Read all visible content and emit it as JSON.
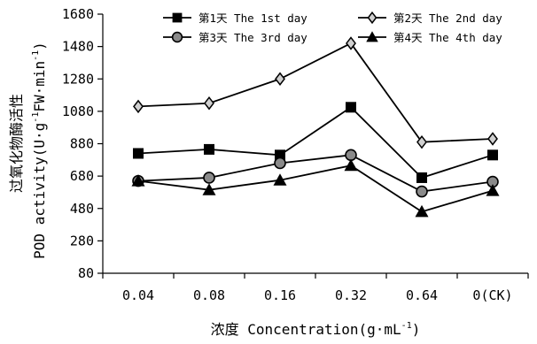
{
  "chart_data": {
    "type": "line",
    "categories": [
      "0.04",
      "0.08",
      "0.16",
      "0.32",
      "0.64",
      "0(CK)"
    ],
    "ylabel_cn": "过氧化物酶活性",
    "ylabel_en": "POD activity(U·g",
    "ylabel_en_sup": "-1",
    "ylabel_en_tail": "FW·min",
    "ylabel_en_sup2": "-1",
    "ylabel_en_end": ")",
    "xlabel": "浓度 Concentration(g·mL",
    "xlabel_sup": "-1",
    "xlabel_end": ")",
    "ylim": [
      80,
      1680
    ],
    "yticks": [
      "80",
      "280",
      "480",
      "680",
      "880",
      "1080",
      "1280",
      "1480",
      "1680"
    ],
    "grid": false,
    "legend_position": "top",
    "series": [
      {
        "name": "第1天 The 1st day",
        "marker": "square",
        "color": "#000000",
        "values": [
          820,
          845,
          810,
          1105,
          670,
          810
        ]
      },
      {
        "name": "第2天 The 2nd day",
        "marker": "diamond",
        "color": "#000000",
        "values": [
          1110,
          1130,
          1280,
          1500,
          890,
          910
        ]
      },
      {
        "name": "第3天 The 3rd day",
        "marker": "circle",
        "color": "#000000",
        "values": [
          650,
          670,
          760,
          810,
          585,
          645
        ]
      },
      {
        "name": "第4天 The 4th day",
        "marker": "triangle",
        "color": "#000000",
        "values": [
          650,
          595,
          655,
          745,
          460,
          590
        ]
      }
    ]
  }
}
